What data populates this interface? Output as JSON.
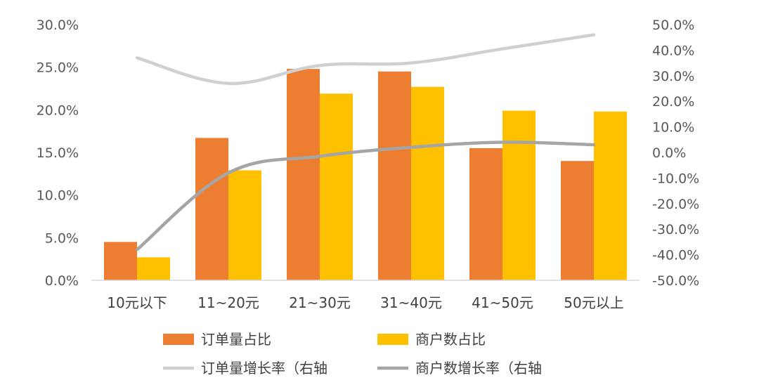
{
  "chart_data": {
    "type": "bar",
    "categories": [
      "10元以下",
      "11~20元",
      "21~30元",
      "31~40元",
      "41~50元",
      "50元以上"
    ],
    "series": [
      {
        "name": "订单量占比",
        "type": "bar",
        "axis": "left",
        "color": "#ED7D31",
        "values": [
          4.5,
          16.7,
          24.8,
          24.5,
          15.5,
          14.0
        ]
      },
      {
        "name": "商户数占比",
        "type": "bar",
        "axis": "left",
        "color": "#FFC000",
        "values": [
          2.7,
          12.9,
          21.9,
          22.7,
          19.9,
          19.8
        ]
      },
      {
        "name": "订单量增长率（右轴",
        "type": "line",
        "axis": "right",
        "color": "#D0D0D0",
        "values": [
          37.0,
          27.0,
          34.0,
          35.0,
          40.5,
          46.0
        ]
      },
      {
        "name": "商户数增长率（右轴",
        "type": "line",
        "axis": "right",
        "color": "#A5A5A5",
        "values": [
          -38.0,
          -8.0,
          -1.5,
          2.0,
          4.0,
          3.0
        ]
      }
    ],
    "y_left": {
      "min": 0,
      "max": 30,
      "step": 5,
      "tick_labels": [
        "0.0%",
        "5.0%",
        "10.0%",
        "15.0%",
        "20.0%",
        "25.0%",
        "30.0%"
      ]
    },
    "y_right": {
      "min": -50,
      "max": 50,
      "step": 10,
      "tick_labels": [
        "-50.0%",
        "-40.0%",
        "-30.0%",
        "-20.0%",
        "-10.0%",
        "0.0%",
        "10.0%",
        "20.0%",
        "30.0%",
        "40.0%",
        "50.0%"
      ]
    },
    "grid": false,
    "legend_position": "bottom"
  }
}
